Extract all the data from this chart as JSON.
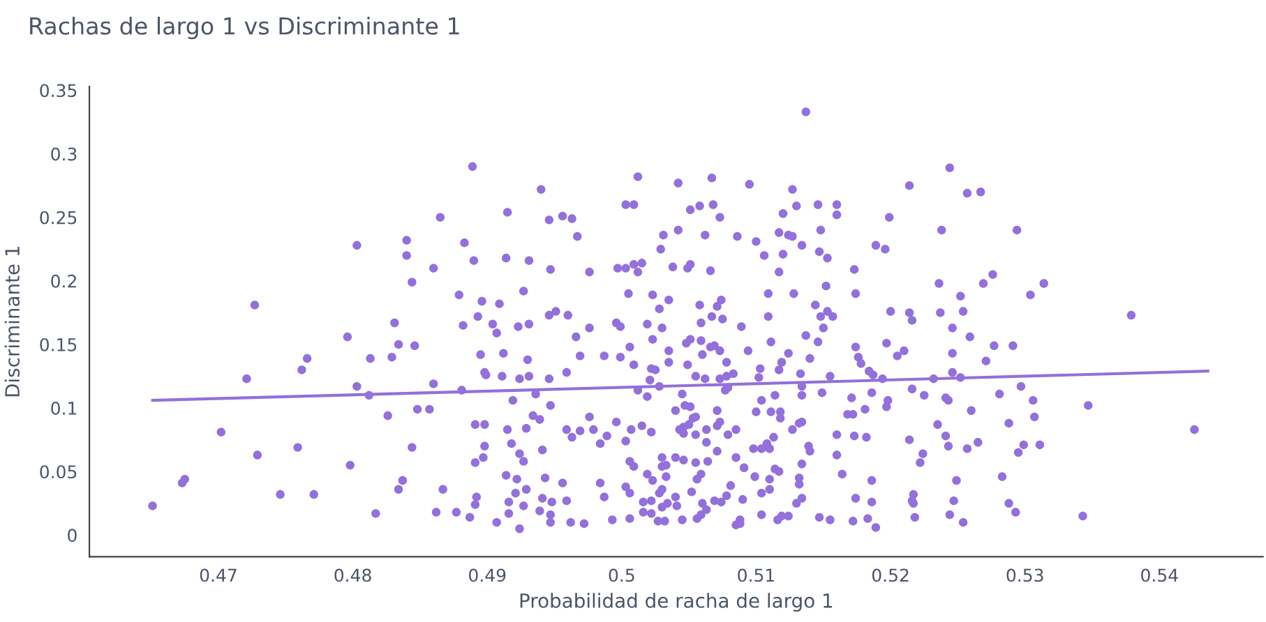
{
  "chart_data": {
    "type": "scatter",
    "title": "Rachas de largo 1 vs Discriminante 1",
    "xlabel": "Probabilidad de racha de largo 1",
    "ylabel": "Discriminante 1",
    "xlim": [
      0.4604,
      0.5477
    ],
    "ylim": [
      -0.017,
      0.353
    ],
    "xticks": [
      0.47,
      0.48,
      0.49,
      0.5,
      0.51,
      0.52,
      0.53,
      0.54
    ],
    "yticks": [
      0,
      0.05,
      0.1,
      0.15,
      0.2,
      0.25,
      0.3,
      0.35
    ],
    "grid": false,
    "legend": false,
    "series": [
      {
        "marker": "circle",
        "color": "#9370db",
        "x": [
          0.4651,
          0.4673,
          0.4675,
          0.4702,
          0.4721,
          0.4727,
          0.4729,
          0.4746,
          0.4759,
          0.4762,
          0.4766,
          0.4771,
          0.4796,
          0.4798,
          0.4803,
          0.4803,
          0.4812,
          0.4813,
          0.4817,
          0.4826,
          0.4829,
          0.4831,
          0.4834,
          0.4834,
          0.4837,
          0.484,
          0.484,
          0.4844,
          0.4844,
          0.4846,
          0.4848,
          0.4857,
          0.486,
          0.486,
          0.4862,
          0.4865,
          0.4867,
          0.4877,
          0.4879,
          0.4881,
          0.4882,
          0.4883,
          0.4887,
          0.4889,
          0.489,
          0.4891,
          0.4891,
          0.4891,
          0.4892,
          0.4893,
          0.4895,
          0.4896,
          0.4897,
          0.4898,
          0.4898,
          0.4898,
          0.4899,
          0.4904,
          0.4915,
          0.494,
          0.4946,
          0.4956,
          0.4963,
          0.4967,
          0.4914,
          0.4931,
          0.4947,
          0.4976,
          0.4927,
          0.4909,
          0.4907,
          0.4923,
          0.4931,
          0.4946,
          0.4951,
          0.496,
          0.4966,
          0.4976,
          0.4912,
          0.493,
          0.4969,
          0.4987,
          0.4999,
          0.4911,
          0.4924,
          0.4931,
          0.4946,
          0.4959,
          0.4936,
          0.4919,
          0.4947,
          0.4934,
          0.4939,
          0.4929,
          0.4915,
          0.4959,
          0.4963,
          0.4976,
          0.4979,
          0.4996,
          0.4918,
          0.4941,
          0.4924,
          0.4927,
          0.4914,
          0.4922,
          0.4943,
          0.4956,
          0.4929,
          0.4921,
          0.4941,
          0.4916,
          0.4927,
          0.4948,
          0.4959,
          0.4939,
          0.4916,
          0.4947,
          0.4907,
          0.4924,
          0.4947,
          0.4962,
          0.4972,
          0.4987,
          0.4984,
          0.4984,
          0.4989,
          0.4969,
          0.4993,
          0.5012,
          0.5003,
          0.5009,
          0.5042,
          0.5067,
          0.5095,
          0.5051,
          0.5058,
          0.5068,
          0.5073,
          0.5031,
          0.5042,
          0.5062,
          0.5086,
          0.5029,
          0.4997,
          0.5003,
          0.5009,
          0.5015,
          0.5012,
          0.5038,
          0.5049,
          0.5051,
          0.5066,
          0.5005,
          0.5023,
          0.5035,
          0.5058,
          0.5074,
          0.5071,
          0.5028,
          0.5067,
          0.5075,
          0.5059,
          0.4996,
          0.5019,
          0.503,
          0.5089,
          0.4999,
          0.5023,
          0.5051,
          0.5048,
          0.5059,
          0.5006,
          0.5035,
          0.5069,
          0.5066,
          0.506,
          0.5073,
          0.5094,
          0.5009,
          0.5035,
          0.5049,
          0.5078,
          0.5022,
          0.5025,
          0.5055,
          0.5062,
          0.5073,
          0.5078,
          0.5083,
          0.5021,
          0.5028,
          0.5012,
          0.5019,
          0.5045,
          0.5077,
          0.5079,
          0.504,
          0.5047,
          0.5051,
          0.5071,
          0.5053,
          0.5055,
          0.505,
          0.5046,
          0.5043,
          0.5046,
          0.5055,
          0.5063,
          0.5073,
          0.5071,
          0.5079,
          0.5085,
          0.5022,
          0.5015,
          0.5007,
          0.5003,
          0.5063,
          0.5071,
          0.504,
          0.5046,
          0.5055,
          0.5064,
          0.5085,
          0.503,
          0.503,
          0.5033,
          0.5006,
          0.5009,
          0.5019,
          0.5033,
          0.5059,
          0.5023,
          0.5056,
          0.5091,
          0.5081,
          0.5078,
          0.5052,
          0.503,
          0.5028,
          0.5003,
          0.5006,
          0.504,
          0.5016,
          0.5022,
          0.5034,
          0.506,
          0.5069,
          0.5074,
          0.509,
          0.5016,
          0.5022,
          0.503,
          0.5041,
          0.5063,
          0.5059,
          0.5056,
          0.5006,
          0.5027,
          0.5032,
          0.5045,
          0.5088,
          0.5085,
          0.5088,
          0.5137,
          0.5127,
          0.512,
          0.513,
          0.5146,
          0.516,
          0.516,
          0.51,
          0.5117,
          0.5124,
          0.5127,
          0.5148,
          0.5134,
          0.5106,
          0.512,
          0.5147,
          0.5153,
          0.5117,
          0.5173,
          0.5152,
          0.5109,
          0.5128,
          0.5174,
          0.5144,
          0.5109,
          0.5148,
          0.5153,
          0.5157,
          0.515,
          0.5137,
          0.5111,
          0.5146,
          0.5124,
          0.514,
          0.5119,
          0.5117,
          0.5103,
          0.5133,
          0.5155,
          0.5174,
          0.5176,
          0.5102,
          0.5134,
          0.5149,
          0.5114,
          0.5134,
          0.5104,
          0.51,
          0.5111,
          0.5118,
          0.5118,
          0.5132,
          0.5134,
          0.5127,
          0.5113,
          0.516,
          0.5171,
          0.5172,
          0.5173,
          0.5168,
          0.5098,
          0.5104,
          0.5108,
          0.511,
          0.5139,
          0.514,
          0.516,
          0.5114,
          0.5117,
          0.5134,
          0.5099,
          0.511,
          0.5132,
          0.5164,
          0.511,
          0.5104,
          0.5132,
          0.5134,
          0.513,
          0.5104,
          0.5116,
          0.5119,
          0.5124,
          0.5147,
          0.5155,
          0.5172,
          0.5174,
          0.5244,
          0.5214,
          0.5257,
          0.5267,
          0.5199,
          0.5238,
          0.5294,
          0.5189,
          0.5196,
          0.5236,
          0.5269,
          0.5276,
          0.5314,
          0.5304,
          0.5252,
          0.52,
          0.5214,
          0.5216,
          0.5237,
          0.5254,
          0.5379,
          0.5246,
          0.5259,
          0.5197,
          0.521,
          0.5205,
          0.5246,
          0.5277,
          0.5291,
          0.5271,
          0.5178,
          0.5184,
          0.5187,
          0.5194,
          0.5246,
          0.5232,
          0.5252,
          0.5216,
          0.5225,
          0.5186,
          0.5297,
          0.5281,
          0.5241,
          0.5243,
          0.5198,
          0.5197,
          0.5306,
          0.5347,
          0.526,
          0.5181,
          0.5307,
          0.5235,
          0.5288,
          0.5426,
          0.5182,
          0.5214,
          0.5241,
          0.5243,
          0.5257,
          0.5265,
          0.5299,
          0.5311,
          0.5295,
          0.5224,
          0.5222,
          0.5186,
          0.5249,
          0.5283,
          0.5217,
          0.5186,
          0.5216,
          0.5217,
          0.5247,
          0.5288,
          0.5293,
          0.5218,
          0.5244,
          0.5183,
          0.5189,
          0.5254,
          0.5343
        ],
        "values": [
          0.023,
          0.041,
          0.044,
          0.081,
          0.123,
          0.181,
          0.063,
          0.032,
          0.069,
          0.13,
          0.139,
          0.032,
          0.156,
          0.055,
          0.228,
          0.117,
          0.11,
          0.139,
          0.017,
          0.094,
          0.14,
          0.167,
          0.036,
          0.15,
          0.043,
          0.232,
          0.22,
          0.069,
          0.199,
          0.149,
          0.099,
          0.099,
          0.21,
          0.119,
          0.018,
          0.25,
          0.036,
          0.018,
          0.189,
          0.114,
          0.165,
          0.23,
          0.014,
          0.29,
          0.216,
          0.087,
          0.024,
          0.057,
          0.03,
          0.172,
          0.142,
          0.184,
          0.061,
          0.128,
          0.087,
          0.07,
          0.126,
          0.166,
          0.254,
          0.272,
          0.248,
          0.251,
          0.249,
          0.235,
          0.218,
          0.216,
          0.209,
          0.207,
          0.192,
          0.182,
          0.159,
          0.164,
          0.166,
          0.173,
          0.176,
          0.173,
          0.156,
          0.163,
          0.143,
          0.138,
          0.141,
          0.141,
          0.14,
          0.125,
          0.123,
          0.125,
          0.123,
          0.128,
          0.111,
          0.106,
          0.102,
          0.094,
          0.091,
          0.084,
          0.083,
          0.083,
          0.077,
          0.093,
          0.083,
          0.089,
          0.072,
          0.067,
          0.064,
          0.058,
          0.047,
          0.044,
          0.045,
          0.041,
          0.036,
          0.033,
          0.029,
          0.026,
          0.023,
          0.026,
          0.027,
          0.019,
          0.017,
          0.016,
          0.01,
          0.005,
          0.01,
          0.01,
          0.009,
          0.03,
          0.041,
          0.072,
          0.078,
          0.082,
          0.012,
          0.282,
          0.26,
          0.26,
          0.277,
          0.281,
          0.276,
          0.256,
          0.259,
          0.26,
          0.25,
          0.236,
          0.24,
          0.236,
          0.235,
          0.225,
          0.21,
          0.21,
          0.213,
          0.214,
          0.207,
          0.211,
          0.21,
          0.213,
          0.208,
          0.19,
          0.189,
          0.185,
          0.181,
          0.185,
          0.18,
          0.178,
          0.172,
          0.17,
          0.167,
          0.167,
          0.166,
          0.163,
          0.164,
          0.164,
          0.154,
          0.154,
          0.151,
          0.153,
          0.148,
          0.145,
          0.149,
          0.148,
          0.142,
          0.145,
          0.145,
          0.134,
          0.136,
          0.134,
          0.136,
          0.131,
          0.13,
          0.125,
          0.123,
          0.123,
          0.125,
          0.127,
          0.122,
          0.117,
          0.114,
          0.109,
          0.111,
          0.114,
          0.116,
          0.098,
          0.102,
          0.101,
          0.098,
          0.092,
          0.093,
          0.087,
          0.085,
          0.083,
          0.08,
          0.079,
          0.083,
          0.089,
          0.086,
          0.079,
          0.083,
          0.081,
          0.086,
          0.083,
          0.074,
          0.073,
          0.066,
          0.061,
          0.059,
          0.057,
          0.058,
          0.061,
          0.061,
          0.054,
          0.055,
          0.058,
          0.054,
          0.048,
          0.046,
          0.048,
          0.043,
          0.044,
          0.053,
          0.039,
          0.031,
          0.034,
          0.036,
          0.033,
          0.038,
          0.033,
          0.03,
          0.026,
          0.027,
          0.025,
          0.025,
          0.027,
          0.026,
          0.028,
          0.018,
          0.017,
          0.022,
          0.023,
          0.02,
          0.016,
          0.013,
          0.013,
          0.011,
          0.011,
          0.012,
          0.012,
          0.008,
          0.009,
          0.333,
          0.272,
          0.253,
          0.259,
          0.26,
          0.26,
          0.252,
          0.231,
          0.238,
          0.236,
          0.235,
          0.24,
          0.228,
          0.22,
          0.221,
          0.223,
          0.218,
          0.207,
          0.209,
          0.196,
          0.19,
          0.19,
          0.19,
          0.181,
          0.172,
          0.172,
          0.176,
          0.172,
          0.163,
          0.157,
          0.152,
          0.152,
          0.143,
          0.139,
          0.136,
          0.13,
          0.131,
          0.127,
          0.125,
          0.148,
          0.14,
          0.124,
          0.117,
          0.112,
          0.11,
          0.11,
          0.106,
          0.097,
          0.097,
          0.097,
          0.092,
          0.088,
          0.089,
          0.083,
          0.077,
          0.079,
          0.108,
          0.095,
          0.078,
          0.095,
          0.068,
          0.068,
          0.072,
          0.068,
          0.07,
          0.066,
          0.063,
          0.052,
          0.05,
          0.056,
          0.046,
          0.044,
          0.045,
          0.048,
          0.036,
          0.033,
          0.04,
          0.029,
          0.025,
          0.016,
          0.012,
          0.015,
          0.015,
          0.014,
          0.012,
          0.011,
          0.029,
          0.289,
          0.275,
          0.269,
          0.27,
          0.25,
          0.24,
          0.24,
          0.228,
          0.225,
          0.198,
          0.198,
          0.205,
          0.198,
          0.189,
          0.188,
          0.176,
          0.175,
          0.169,
          0.175,
          0.176,
          0.173,
          0.163,
          0.156,
          0.151,
          0.145,
          0.141,
          0.143,
          0.149,
          0.149,
          0.137,
          0.135,
          0.129,
          0.126,
          0.123,
          0.128,
          0.123,
          0.124,
          0.115,
          0.11,
          0.112,
          0.117,
          0.111,
          0.108,
          0.106,
          0.106,
          0.101,
          0.106,
          0.102,
          0.098,
          0.099,
          0.093,
          0.087,
          0.088,
          0.083,
          0.077,
          0.075,
          0.078,
          0.07,
          0.068,
          0.073,
          0.071,
          0.071,
          0.065,
          0.064,
          0.057,
          0.043,
          0.043,
          0.046,
          0.032,
          0.026,
          0.027,
          0.025,
          0.027,
          0.025,
          0.018,
          0.014,
          0.016,
          0.013,
          0.006,
          0.01,
          0.015
        ]
      },
      {
        "type": "line",
        "color": "#9370db",
        "x": [
          0.4651,
          0.5436
        ],
        "values": [
          0.106,
          0.129
        ]
      }
    ]
  }
}
